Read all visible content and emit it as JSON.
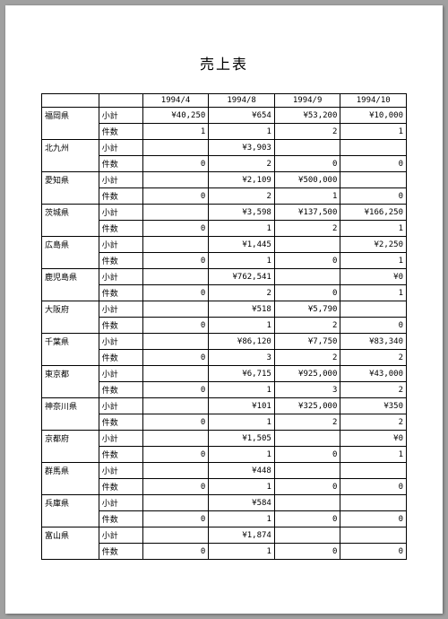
{
  "title": "売上表",
  "columns": [
    "1994/4",
    "1994/8",
    "1994/9",
    "1994/10"
  ],
  "sub_labels": {
    "subtotal": "小計",
    "count": "件数"
  },
  "rows": [
    {
      "pref": "福岡県",
      "subtotal": [
        "¥40,250",
        "¥654",
        "¥53,200",
        "¥10,000"
      ],
      "count": [
        "1",
        "1",
        "2",
        "1"
      ]
    },
    {
      "pref": "北九州",
      "subtotal": [
        "",
        "¥3,903",
        "",
        ""
      ],
      "count": [
        "0",
        "2",
        "0",
        "0"
      ]
    },
    {
      "pref": "愛知県",
      "subtotal": [
        "",
        "¥2,109",
        "¥500,000",
        ""
      ],
      "count": [
        "0",
        "2",
        "1",
        "0"
      ]
    },
    {
      "pref": "茨城県",
      "subtotal": [
        "",
        "¥3,598",
        "¥137,500",
        "¥166,250"
      ],
      "count": [
        "0",
        "1",
        "2",
        "1"
      ]
    },
    {
      "pref": "広島県",
      "subtotal": [
        "",
        "¥1,445",
        "",
        "¥2,250"
      ],
      "count": [
        "0",
        "1",
        "0",
        "1"
      ]
    },
    {
      "pref": "鹿児島県",
      "subtotal": [
        "",
        "¥762,541",
        "",
        "¥0"
      ],
      "count": [
        "0",
        "2",
        "0",
        "1"
      ]
    },
    {
      "pref": "大阪府",
      "subtotal": [
        "",
        "¥518",
        "¥5,790",
        ""
      ],
      "count": [
        "0",
        "1",
        "2",
        "0"
      ]
    },
    {
      "pref": "千葉県",
      "subtotal": [
        "",
        "¥86,120",
        "¥7,750",
        "¥83,340"
      ],
      "count": [
        "0",
        "3",
        "2",
        "2"
      ]
    },
    {
      "pref": "東京都",
      "subtotal": [
        "",
        "¥6,715",
        "¥925,000",
        "¥43,000"
      ],
      "count": [
        "0",
        "1",
        "3",
        "2"
      ]
    },
    {
      "pref": "神奈川県",
      "subtotal": [
        "",
        "¥101",
        "¥325,000",
        "¥350"
      ],
      "count": [
        "0",
        "1",
        "2",
        "2"
      ]
    },
    {
      "pref": "京都府",
      "subtotal": [
        "",
        "¥1,505",
        "",
        "¥0"
      ],
      "count": [
        "0",
        "1",
        "0",
        "1"
      ]
    },
    {
      "pref": "群馬県",
      "subtotal": [
        "",
        "¥448",
        "",
        ""
      ],
      "count": [
        "0",
        "1",
        "0",
        "0"
      ]
    },
    {
      "pref": "兵庫県",
      "subtotal": [
        "",
        "¥584",
        "",
        ""
      ],
      "count": [
        "0",
        "1",
        "0",
        "0"
      ]
    },
    {
      "pref": "富山県",
      "subtotal": [
        "",
        "¥1,874",
        "",
        ""
      ],
      "count": [
        "0",
        "1",
        "0",
        "0"
      ]
    }
  ],
  "style": {
    "page_bg": "#ffffff",
    "outer_bg": "#a0a0a0",
    "border_color": "#000000",
    "title_fontsize": 16,
    "cell_fontsize": 9
  }
}
